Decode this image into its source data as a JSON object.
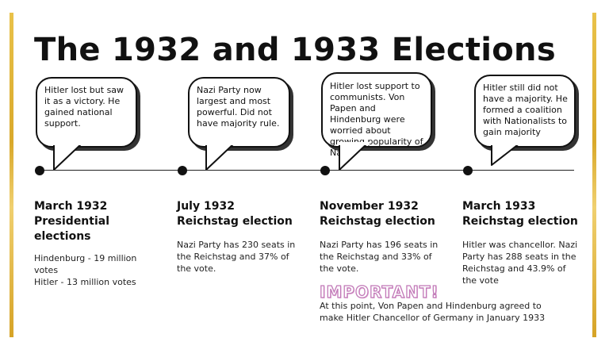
{
  "colors": {
    "frame_gold": "#d9a92b",
    "text": "#111111",
    "important_pink": "#c27ab8"
  },
  "title": "The 1932 and 1933 Elections",
  "events": [
    {
      "bubble": "Hitler lost but saw it as a victory. He gained national support.",
      "heading_line1": "March 1932",
      "heading_line2": "Presidential",
      "heading_line3": "elections",
      "details": [
        "Hindenburg - 19 million votes",
        "Hitler - 13 million votes"
      ]
    },
    {
      "bubble": "Nazi Party now largest and most powerful. Did not have majority rule.",
      "heading_line1": "July 1932",
      "heading_line2": "Reichstag election",
      "details": [
        "Nazi Party has 230 seats in the Reichstag and 37% of the vote."
      ]
    },
    {
      "bubble": "Hitler lost support to communists. Von Papen and Hindenburg were worried about growing popularity of Nazi.",
      "heading_line1": "November 1932",
      "heading_line2": "Reichstag election",
      "details": [
        "Nazi Party has 196 seats in the Reichstag and 33% of the vote."
      ]
    },
    {
      "bubble": "Hitler still did not have a majority. He formed a coalition with Nationalists to gain majority",
      "heading_line1": "March 1933",
      "heading_line2": "Reichstag election",
      "details": [
        "Hitler was chancellor. Nazi Party has 288 seats in the Reichstag and 43.9% of the vote"
      ]
    }
  ],
  "important_label": "IMPORTANT!",
  "important_note": "At this point, Von Papen and Hindenburg agreed to make Hitler Chancellor of Germany in January 1933"
}
